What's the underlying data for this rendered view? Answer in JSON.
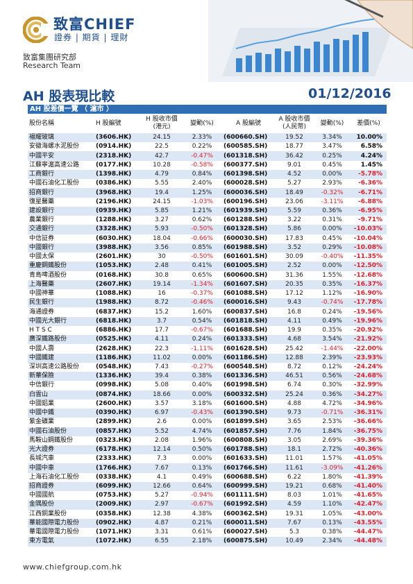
{
  "header": {
    "brand": "致富CHIEF",
    "brand_sub": "證券 | 期貨 | 理財",
    "group": "致富集團研究部",
    "team": "Research Team"
  },
  "report": {
    "title": "AH 股表現比較",
    "date": "01/12/2016"
  },
  "section": {
    "title": "AH 股差價一覽 （ 滬市 ）"
  },
  "columns": {
    "name": "股份名稱",
    "h_code": "H 股編號",
    "h_close": "H 股收市價 (港元)",
    "h_change": "變動(%)",
    "a_code": "A 股編號",
    "a_close": "A 股收市價 (人民幣)",
    "a_change": "變動(%)",
    "premium": "差價(%)"
  },
  "rows": [
    {
      "name": "福耀玻璃",
      "h_code": "(3606.HK)",
      "h_close": "24.15",
      "h_change": "2.33%",
      "a_code": "(600660.SH)",
      "a_close": "19.52",
      "a_change": "3.34%",
      "premium": "10.00%"
    },
    {
      "name": "安徽海螺水泥股份",
      "h_code": "(0914.HK)",
      "h_close": "22.5",
      "h_change": "0.22%",
      "a_code": "(600585.SH)",
      "a_close": "18.77",
      "a_change": "3.47%",
      "premium": "6.58%"
    },
    {
      "name": "中國平安",
      "h_code": "(2318.HK)",
      "h_close": "42.7",
      "h_change": "-0.47%",
      "a_code": "(601318.SH)",
      "a_close": "36.42",
      "a_change": "0.25%",
      "premium": "4.24%"
    },
    {
      "name": "江蘇寧滬高速公路",
      "h_code": "(0177.HK)",
      "h_close": "10.28",
      "h_change": "-0.58%",
      "a_code": "(600377.SH)",
      "a_close": "9.01",
      "a_change": "0.45%",
      "premium": "1.45%"
    },
    {
      "name": "工商銀行",
      "h_code": "(1398.HK)",
      "h_close": "4.79",
      "h_change": "0.84%",
      "a_code": "(601398.SH)",
      "a_close": "4.52",
      "a_change": "0.00%",
      "premium": "-5.78%"
    },
    {
      "name": "中國石油化工股份",
      "h_code": "(0386.HK)",
      "h_close": "5.55",
      "h_change": "2.40%",
      "a_code": "(600028.SH)",
      "a_close": "5.27",
      "a_change": "2.93%",
      "premium": "-6.36%"
    },
    {
      "name": "招商銀行",
      "h_code": "(3968.HK)",
      "h_close": "19.4",
      "h_change": "1.25%",
      "a_code": "(600036.SH)",
      "a_close": "18.49",
      "a_change": "-0.32%",
      "premium": "-6.71%"
    },
    {
      "name": "復星醫藥",
      "h_code": "(2196.HK)",
      "h_close": "24.15",
      "h_change": "-1.03%",
      "a_code": "(600196.SH)",
      "a_close": "23.06",
      "a_change": "-3.11%",
      "premium": "-6.88%"
    },
    {
      "name": "建設銀行",
      "h_code": "(0939.HK)",
      "h_close": "5.85",
      "h_change": "1.21%",
      "a_code": "(601939.SH)",
      "a_close": "5.59",
      "a_change": "0.36%",
      "premium": "-6.95%"
    },
    {
      "name": "農業銀行",
      "h_code": "(1288.HK)",
      "h_close": "3.27",
      "h_change": "0.62%",
      "a_code": "(601288.SH)",
      "a_close": "3.22",
      "a_change": "0.31%",
      "premium": "-9.71%"
    },
    {
      "name": "交通銀行",
      "h_code": "(3328.HK)",
      "h_close": "5.93",
      "h_change": "-0.50%",
      "a_code": "(601328.SH)",
      "a_close": "5.86",
      "a_change": "0.00%",
      "premium": "-10.03%"
    },
    {
      "name": "中信証券",
      "h_code": "(6030.HK)",
      "h_close": "18.04",
      "h_change": "-0.66%",
      "a_code": "(600030.SH)",
      "a_close": "17.83",
      "a_change": "0.45%",
      "premium": "-10.04%"
    },
    {
      "name": "中國銀行",
      "h_code": "(3988.HK)",
      "h_close": "3.56",
      "h_change": "0.85%",
      "a_code": "(601988.SH)",
      "a_close": "3.52",
      "a_change": "0.29%",
      "premium": "-10.08%"
    },
    {
      "name": "中國太保",
      "h_code": "(2601.HK)",
      "h_close": "30",
      "h_change": "-0.50%",
      "a_code": "(601601.SH)",
      "a_close": "30.09",
      "a_change": "-0.40%",
      "premium": "-11.35%"
    },
    {
      "name": "重慶鋼鐵股份",
      "h_code": "(1053.HK)",
      "h_close": "2.48",
      "h_change": "0.41%",
      "a_code": "(601005.SH)",
      "a_close": "2.52",
      "a_change": "0.00%",
      "premium": "-12.50%"
    },
    {
      "name": "青島啤酒股份",
      "h_code": "(0168.HK)",
      "h_close": "30.8",
      "h_change": "0.65%",
      "a_code": "(600600.SH)",
      "a_close": "31.36",
      "a_change": "1.55%",
      "premium": "-12.68%"
    },
    {
      "name": "上海醫藥",
      "h_code": "(2607.HK)",
      "h_close": "19.14",
      "h_change": "-1.34%",
      "a_code": "(601607.SH)",
      "a_close": "20.35",
      "a_change": "0.35%",
      "premium": "-16.37%"
    },
    {
      "name": "中國神華",
      "h_code": "(1088.HK)",
      "h_close": "16",
      "h_change": "-0.37%",
      "a_code": "(601088.SH)",
      "a_close": "17.12",
      "a_change": "1.12%",
      "premium": "-16.90%"
    },
    {
      "name": "民生銀行",
      "h_code": "(1988.HK)",
      "h_close": "8.72",
      "h_change": "-0.46%",
      "a_code": "(600016.SH)",
      "a_close": "9.43",
      "a_change": "-0.74%",
      "premium": "-17.78%"
    },
    {
      "name": "海通證券",
      "h_code": "(6837.HK)",
      "h_close": "15.2",
      "h_change": "1.60%",
      "a_code": "(600837.SH)",
      "a_close": "16.8",
      "a_change": "0.24%",
      "premium": "-19.56%"
    },
    {
      "name": "中國光大銀行",
      "h_code": "(6818.HK)",
      "h_close": "3.7",
      "h_change": "0.54%",
      "a_code": "(601818.SH)",
      "a_close": "4.11",
      "a_change": "0.49%",
      "premium": "-19.96%"
    },
    {
      "name": "H T S C",
      "h_code": "(6886.HK)",
      "h_close": "17.7",
      "h_change": "-0.67%",
      "a_code": "(601688.SH)",
      "a_close": "19.9",
      "a_change": "0.35%",
      "premium": "-20.92%"
    },
    {
      "name": "廣深鐵路股份",
      "h_code": "(0525.HK)",
      "h_close": "4.11",
      "h_change": "0.24%",
      "a_code": "(601333.SH)",
      "a_close": "4.68",
      "a_change": "3.54%",
      "premium": "-21.92%"
    },
    {
      "name": "中國人壽",
      "h_code": "(2628.HK)",
      "h_close": "22.3",
      "h_change": "-1.11%",
      "a_code": "(601628.SH)",
      "a_close": "25.42",
      "a_change": "-1.44%",
      "premium": "-22.00%"
    },
    {
      "name": "中國鐵建",
      "h_code": "(1186.HK)",
      "h_close": "11.02",
      "h_change": "0.00%",
      "a_code": "(601186.SH)",
      "a_close": "12.88",
      "a_change": "2.39%",
      "premium": "-23.93%"
    },
    {
      "name": "深圳高速公路股份",
      "h_code": "(0548.HK)",
      "h_close": "7.43",
      "h_change": "-0.27%",
      "a_code": "(600548.SH)",
      "a_close": "8.72",
      "a_change": "0.12%",
      "premium": "-24.24%"
    },
    {
      "name": "新華保險",
      "h_code": "(1336.HK)",
      "h_close": "39.4",
      "h_change": "0.38%",
      "a_code": "(601336.SH)",
      "a_close": "46.51",
      "a_change": "0.56%",
      "premium": "-24.68%"
    },
    {
      "name": "中信銀行",
      "h_code": "(0998.HK)",
      "h_close": "5.08",
      "h_change": "0.40%",
      "a_code": "(601998.SH)",
      "a_close": "6.74",
      "a_change": "0.30%",
      "premium": "-32.99%"
    },
    {
      "name": "白雲山",
      "h_code": "(0874.HK)",
      "h_close": "18.66",
      "h_change": "0.00%",
      "a_code": "(600332.SH)",
      "a_close": "25.24",
      "a_change": "0.36%",
      "premium": "-34.27%"
    },
    {
      "name": "中國鋁業",
      "h_code": "(2600.HK)",
      "h_close": "3.57",
      "h_change": "3.18%",
      "a_code": "(601600.SH)",
      "a_close": "4.88",
      "a_change": "4.72%",
      "premium": "-34.96%"
    },
    {
      "name": "中國中鐵",
      "h_code": "(0390.HK)",
      "h_close": "6.97",
      "h_change": "-0.43%",
      "a_code": "(601390.SH)",
      "a_close": "9.73",
      "a_change": "-0.71%",
      "premium": "-36.31%"
    },
    {
      "name": "紫金礦業",
      "h_code": "(2899.HK)",
      "h_close": "2.6",
      "h_change": "0.00%",
      "a_code": "(601899.SH)",
      "a_close": "3.65",
      "a_change": "2.53%",
      "premium": "-36.66%"
    },
    {
      "name": "中國石油股份",
      "h_code": "(0857.HK)",
      "h_close": "5.52",
      "h_change": "4.74%",
      "a_code": "(601857.SH)",
      "a_close": "7.76",
      "a_change": "1.84%",
      "premium": "-36.75%"
    },
    {
      "name": "馬鞍山鋼鐵股份",
      "h_code": "(0323.HK)",
      "h_close": "2.08",
      "h_change": "1.96%",
      "a_code": "(600808.SH)",
      "a_close": "3.05",
      "a_change": "2.69%",
      "premium": "-39.36%"
    },
    {
      "name": "光大證券",
      "h_code": "(6178.HK)",
      "h_close": "12.14",
      "h_change": "0.50%",
      "a_code": "(601788.SH)",
      "a_close": "18.1",
      "a_change": "2.72%",
      "premium": "-40.36%"
    },
    {
      "name": "長城汽車",
      "h_code": "(2333.HK)",
      "h_close": "7.3",
      "h_change": "0.00%",
      "a_code": "(601633.SH)",
      "a_close": "11.01",
      "a_change": "1.57%",
      "premium": "-41.05%"
    },
    {
      "name": "中國中車",
      "h_code": "(1766.HK)",
      "h_close": "7.67",
      "h_change": "0.13%",
      "a_code": "(601766.SH)",
      "a_close": "11.61",
      "a_change": "-3.09%",
      "premium": "-41.26%"
    },
    {
      "name": "上海石油化工股份",
      "h_code": "(0338.HK)",
      "h_close": "4.1",
      "h_change": "0.49%",
      "a_code": "(600688.SH)",
      "a_close": "6.22",
      "a_change": "1.80%",
      "premium": "-41.39%"
    },
    {
      "name": "招商證券",
      "h_code": "(6099.HK)",
      "h_close": "12.66",
      "h_change": "0.64%",
      "a_code": "(600999.SH)",
      "a_close": "19.21",
      "a_change": "0.68%",
      "premium": "-41.40%"
    },
    {
      "name": "中國國航",
      "h_code": "(0753.HK)",
      "h_close": "5.27",
      "h_change": "-0.94%",
      "a_code": "(601111.SH)",
      "a_close": "8.03",
      "a_change": "1.01%",
      "premium": "-41.65%"
    },
    {
      "name": "金隅股份",
      "h_code": "(2009.HK)",
      "h_close": "2.97",
      "h_change": "-0.67%",
      "a_code": "(601992.SH)",
      "a_close": "4.59",
      "a_change": "1.10%",
      "premium": "-42.47%"
    },
    {
      "name": "江西銅業股份",
      "h_code": "(0358.HK)",
      "h_close": "12.38",
      "h_change": "4.38%",
      "a_code": "(600362.SH)",
      "a_close": "19.31",
      "a_change": "1.05%",
      "premium": "-43.00%"
    },
    {
      "name": "華能國際電力股份",
      "h_code": "(0902.HK)",
      "h_close": "4.87",
      "h_change": "0.21%",
      "a_code": "(600011.SH)",
      "a_close": "7.67",
      "a_change": "0.13%",
      "premium": "-43.55%"
    },
    {
      "name": "華電國際電力股份",
      "h_code": "(1071.HK)",
      "h_close": "3.31",
      "h_change": "0.61%",
      "a_code": "(600027.SH)",
      "a_close": "5.3",
      "a_change": "0.38%",
      "premium": "-44.47%"
    },
    {
      "name": "東方電氣",
      "h_code": "(1072.HK)",
      "h_close": "6.55",
      "h_change": "2.18%",
      "a_code": "(600875.SH)",
      "a_close": "10.49",
      "a_change": "2.34%",
      "premium": "-44.48%"
    }
  ],
  "footer": {
    "url": "www.chiefgroup.com.hk"
  },
  "colors": {
    "brand_blue": "#1f4e8c",
    "section_bar": "#2f6db5",
    "row_stripe": "#dbe7f4",
    "negative": "#e0202a",
    "logo_gold": "#c8942c"
  }
}
